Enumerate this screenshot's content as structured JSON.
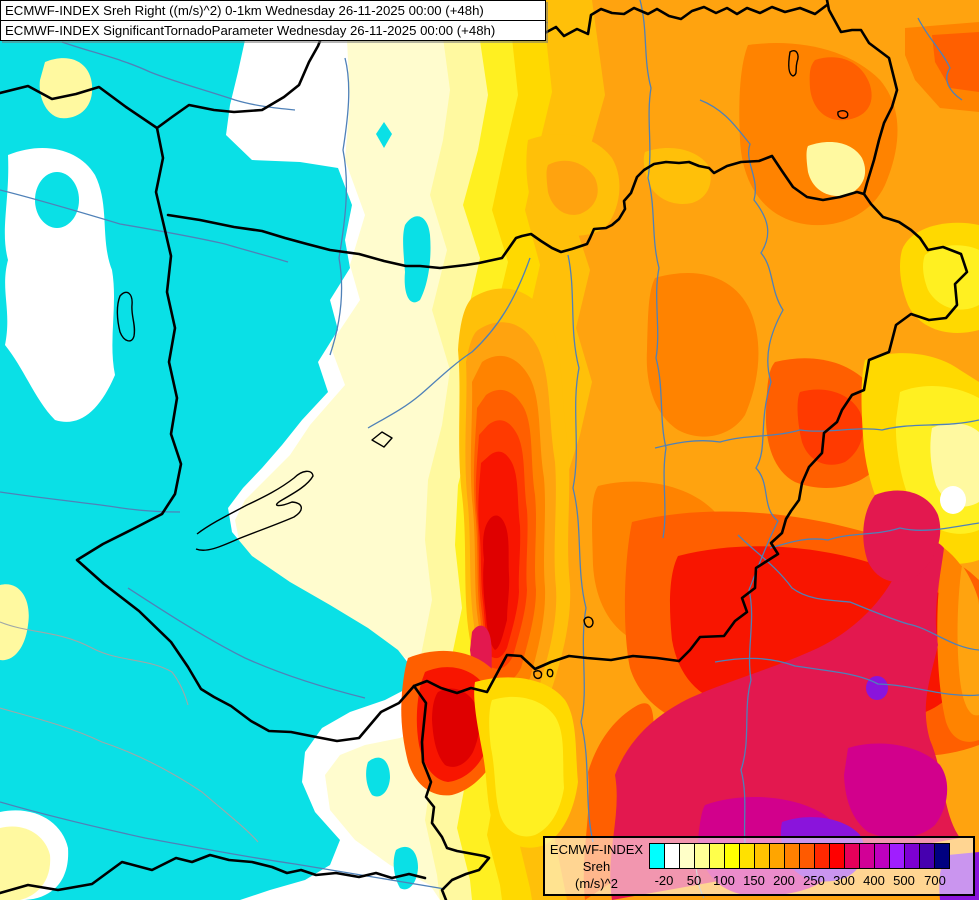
{
  "header": {
    "line1": "ECMWF-INDEX Sreh Right ((m/s)^2) 0-1km Wednesday 26-11-2025 00:00 (+48h)",
    "line2": "ECMWF-INDEX SignificantTornadoParameter Wednesday 26-11-2025 00:00 (+48h)"
  },
  "legend": {
    "title": "ECMWF-INDEX",
    "variable": "Sreh",
    "units": "(m/s)^2",
    "tick_labels": [
      "-20",
      "50",
      "100",
      "150",
      "200",
      "250",
      "300",
      "400",
      "500",
      "700"
    ],
    "tick_boundary_indices": [
      1,
      3,
      5,
      7,
      9,
      11,
      13,
      15,
      17,
      19
    ],
    "colors": [
      "#00FFFF",
      "#FFFFFF",
      "#FFFFC8",
      "#FFFF96",
      "#FFFF4B",
      "#FFFF00",
      "#FFE100",
      "#FFC300",
      "#FFA500",
      "#FF8000",
      "#FF5A00",
      "#FF2800",
      "#FF0000",
      "#E6005A",
      "#D20096",
      "#BE00BE",
      "#A01EFF",
      "#7D00D2",
      "#4600AF",
      "#000080"
    ]
  },
  "map_palette": {
    "cyan": "#0AE0E6",
    "white": "#FFFFFF",
    "cream": "#FFFCCE",
    "paleYellow": "#FFF9A0",
    "yellow": "#FFF021",
    "gold": "#FFD900",
    "amber": "#FFC009",
    "orange": "#FFA30F",
    "darkOrange": "#FF8300",
    "orangeRed": "#FF5F00",
    "redOrange": "#FF3A00",
    "red": "#F81500",
    "deepRed": "#DF0000",
    "crimson": "#E3184F",
    "magenta": "#D2008C",
    "purpleMagenta": "#BE00BE",
    "violet": "#A01EFF",
    "purple": "#8A14DC",
    "indigo": "#4600AF",
    "navy": "#000080",
    "border": "#000000",
    "river": "#4F81B8",
    "grayline": "#9FA8A8",
    "lake": "#000000"
  }
}
